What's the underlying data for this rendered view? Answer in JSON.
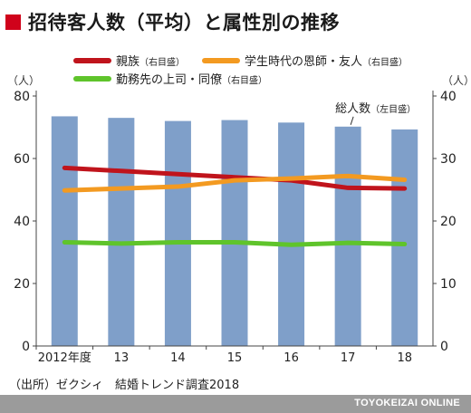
{
  "title": "招待客人数（平均）と属性別の推移",
  "source": "（出所）ゼクシィ　結婚トレンド調査2018",
  "brand": "TOYOKEIZAI ONLINE",
  "chart_data": {
    "type": "bar",
    "categories": [
      "2012年度",
      "13",
      "14",
      "15",
      "16",
      "17",
      "18"
    ],
    "left_axis": {
      "unit": "（人）",
      "ticks": [
        0,
        20,
        40,
        60,
        80
      ],
      "ylim": [
        0,
        80
      ]
    },
    "right_axis": {
      "unit": "（人）",
      "ticks": [
        0,
        10,
        20,
        30,
        40
      ],
      "ylim": [
        0,
        40
      ]
    },
    "bars": {
      "name": "総人数",
      "axis_note": "（左目盛）",
      "color": "#7f9fc9",
      "values": [
        73.5,
        73.0,
        72.0,
        72.3,
        71.5,
        70.2,
        69.3
      ]
    },
    "series": [
      {
        "name": "親族",
        "axis_note": "（右目盛）",
        "color": "#c0141c",
        "values": [
          28.5,
          28.0,
          27.5,
          27.0,
          26.5,
          25.3,
          25.2
        ]
      },
      {
        "name": "学生時代の恩師・友人",
        "axis_note": "（右目盛）",
        "color": "#f39a21",
        "values": [
          24.9,
          25.2,
          25.5,
          26.5,
          26.8,
          27.2,
          26.6
        ]
      },
      {
        "name": "勤務先の上司・同僚",
        "axis_note": "（右目盛）",
        "color": "#5fc42b",
        "values": [
          16.6,
          16.4,
          16.6,
          16.6,
          16.2,
          16.5,
          16.3
        ]
      }
    ],
    "grid": false,
    "legend_position": "top"
  }
}
